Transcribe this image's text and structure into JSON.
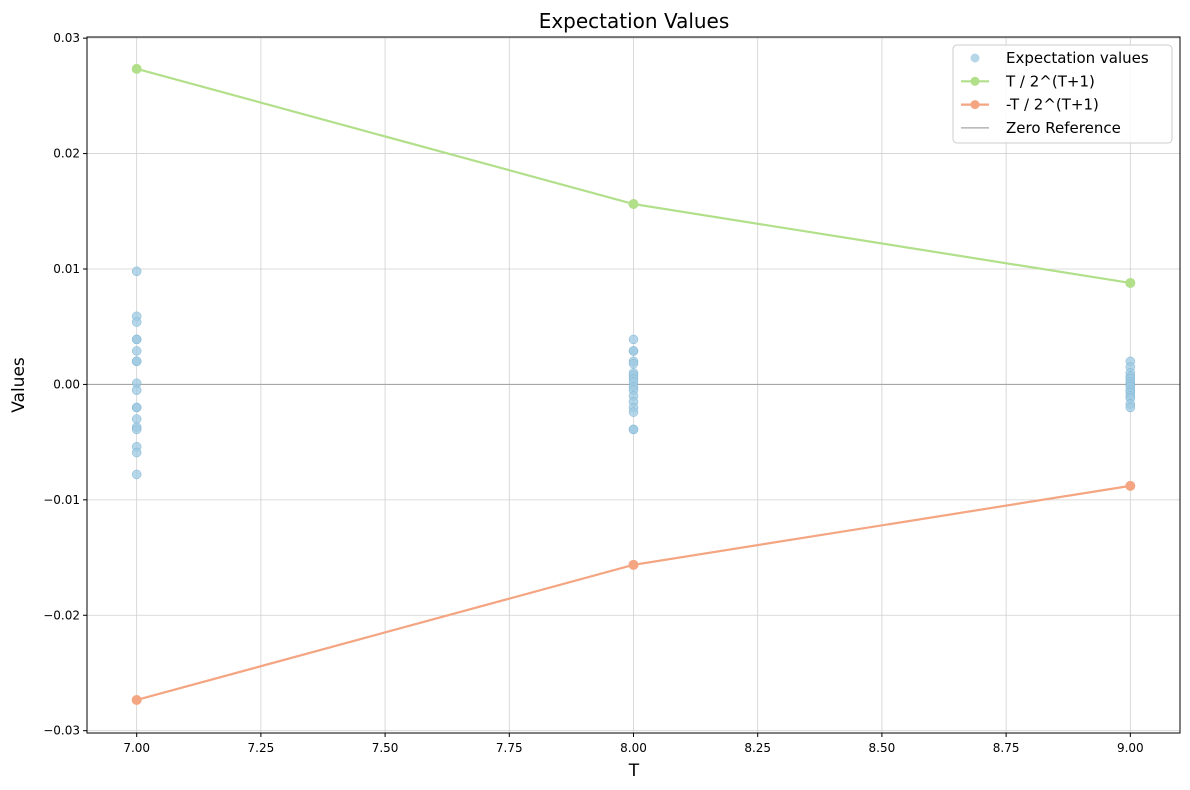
{
  "chart_data": {
    "type": "scatter",
    "title": "Expectation Values",
    "xlabel": "T",
    "ylabel": "Values",
    "xlim": [
      6.9,
      9.1
    ],
    "ylim": [
      -0.0302,
      0.0301
    ],
    "xticks": [
      7.0,
      7.25,
      7.5,
      7.75,
      8.0,
      8.25,
      8.5,
      8.75,
      9.0
    ],
    "xtick_labels": [
      "7.00",
      "7.25",
      "7.50",
      "7.75",
      "8.00",
      "8.25",
      "8.50",
      "8.75",
      "9.00"
    ],
    "yticks": [
      -0.03,
      -0.02,
      -0.01,
      0.0,
      0.01,
      0.02,
      0.03
    ],
    "ytick_labels": [
      "−0.03",
      "−0.02",
      "−0.01",
      "0.00",
      "0.01",
      "0.02",
      "0.03"
    ],
    "grid": true,
    "legend_position": "top-right",
    "series": [
      {
        "name": "Expectation values",
        "kind": "scatter",
        "color": "#9ecae1",
        "points": [
          {
            "x": 7,
            "y": 0.0098
          },
          {
            "x": 7,
            "y": 0.0059
          },
          {
            "x": 7,
            "y": 0.0054
          },
          {
            "x": 7,
            "y": 0.0039
          },
          {
            "x": 7,
            "y": 0.0039
          },
          {
            "x": 7,
            "y": 0.0029
          },
          {
            "x": 7,
            "y": 0.002
          },
          {
            "x": 7,
            "y": 0.002
          },
          {
            "x": 7,
            "y": 0.0001
          },
          {
            "x": 7,
            "y": -0.0005
          },
          {
            "x": 7,
            "y": -0.002
          },
          {
            "x": 7,
            "y": -0.002
          },
          {
            "x": 7,
            "y": -0.003
          },
          {
            "x": 7,
            "y": -0.0037
          },
          {
            "x": 7,
            "y": -0.0039
          },
          {
            "x": 7,
            "y": -0.0054
          },
          {
            "x": 7,
            "y": -0.0059
          },
          {
            "x": 7,
            "y": -0.0078
          },
          {
            "x": 8,
            "y": 0.0039
          },
          {
            "x": 8,
            "y": 0.0029
          },
          {
            "x": 8,
            "y": 0.0029
          },
          {
            "x": 8,
            "y": 0.002
          },
          {
            "x": 8,
            "y": 0.0018
          },
          {
            "x": 8,
            "y": 0.001
          },
          {
            "x": 8,
            "y": 0.0008
          },
          {
            "x": 8,
            "y": 0.0005
          },
          {
            "x": 8,
            "y": 0.0002
          },
          {
            "x": 8,
            "y": -0.0002
          },
          {
            "x": 8,
            "y": -0.0005
          },
          {
            "x": 8,
            "y": -0.001
          },
          {
            "x": 8,
            "y": -0.0015
          },
          {
            "x": 8,
            "y": -0.002
          },
          {
            "x": 8,
            "y": -0.0024
          },
          {
            "x": 8,
            "y": -0.0039
          },
          {
            "x": 8,
            "y": -0.0039
          },
          {
            "x": 9,
            "y": 0.002
          },
          {
            "x": 9,
            "y": 0.0015
          },
          {
            "x": 9,
            "y": 0.001
          },
          {
            "x": 9,
            "y": 0.0007
          },
          {
            "x": 9,
            "y": 0.0005
          },
          {
            "x": 9,
            "y": 0.0002
          },
          {
            "x": 9,
            "y": 0.0
          },
          {
            "x": 9,
            "y": -0.0002
          },
          {
            "x": 9,
            "y": -0.0005
          },
          {
            "x": 9,
            "y": -0.0007
          },
          {
            "x": 9,
            "y": -0.001
          },
          {
            "x": 9,
            "y": -0.0012
          },
          {
            "x": 9,
            "y": -0.0017
          },
          {
            "x": 9,
            "y": -0.002
          }
        ]
      },
      {
        "name": "T / 2^(T+1)",
        "kind": "line",
        "color": "#b2df8a",
        "x": [
          7,
          8,
          9
        ],
        "y": [
          0.02734,
          0.01563,
          0.00879
        ]
      },
      {
        "name": "-T / 2^(T+1)",
        "kind": "line",
        "color": "#f4a582",
        "x": [
          7,
          8,
          9
        ],
        "y": [
          -0.02734,
          -0.01563,
          -0.00879
        ]
      },
      {
        "name": "Zero Reference",
        "kind": "hline",
        "color": "#a6a6a6",
        "y": 0.0
      }
    ]
  }
}
